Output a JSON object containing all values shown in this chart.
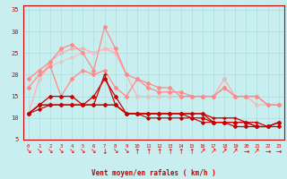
{
  "xlabel": "Vent moyen/en rafales ( km/h )",
  "xlim": [
    -0.5,
    23.5
  ],
  "ylim": [
    5,
    36
  ],
  "yticks": [
    5,
    10,
    15,
    20,
    25,
    30,
    35
  ],
  "xticks": [
    0,
    1,
    2,
    3,
    4,
    5,
    6,
    7,
    8,
    9,
    10,
    11,
    12,
    13,
    14,
    15,
    16,
    17,
    18,
    19,
    20,
    21,
    22,
    23
  ],
  "bg_color": "#c9eef0",
  "grid_color": "#aadddd",
  "series": [
    {
      "x": [
        0,
        1,
        2,
        3,
        4,
        5,
        6,
        7,
        8,
        9,
        10,
        11,
        12,
        13,
        14,
        15,
        16,
        17,
        18,
        19,
        20,
        21,
        22,
        23
      ],
      "y": [
        11,
        13,
        13,
        13,
        13,
        13,
        13,
        20,
        13,
        11,
        11,
        11,
        11,
        11,
        11,
        11,
        11,
        10,
        10,
        10,
        9,
        9,
        8,
        9
      ],
      "color": "#cc0000",
      "lw": 0.9,
      "marker": "+",
      "ms": 3.5,
      "zorder": 5
    },
    {
      "x": [
        0,
        1,
        2,
        3,
        4,
        5,
        6,
        7,
        8,
        9,
        10,
        11,
        12,
        13,
        14,
        15,
        16,
        17,
        18,
        19,
        20,
        21,
        22,
        23
      ],
      "y": [
        11,
        13,
        13,
        13,
        13,
        13,
        15,
        19,
        15,
        11,
        11,
        11,
        11,
        11,
        11,
        10,
        10,
        9,
        9,
        9,
        9,
        8,
        8,
        9
      ],
      "color": "#cc0000",
      "lw": 0.9,
      "marker": "D",
      "ms": 2.0,
      "zorder": 4
    },
    {
      "x": [
        0,
        1,
        2,
        3,
        4,
        5,
        6,
        7,
        8,
        9,
        10,
        11,
        12,
        13,
        14,
        15,
        16,
        17,
        18,
        19,
        20,
        21,
        22,
        23
      ],
      "y": [
        11,
        13,
        15,
        15,
        15,
        13,
        13,
        13,
        13,
        11,
        11,
        11,
        11,
        11,
        11,
        11,
        11,
        9,
        9,
        8,
        8,
        8,
        8,
        8
      ],
      "color": "#cc0000",
      "lw": 0.9,
      "marker": "D",
      "ms": 2.0,
      "zorder": 3
    },
    {
      "x": [
        0,
        1,
        2,
        3,
        4,
        5,
        6,
        7,
        8,
        9,
        10,
        11,
        12,
        13,
        14,
        15,
        16,
        17,
        18,
        19,
        20,
        21,
        22,
        23
      ],
      "y": [
        11,
        12,
        13,
        13,
        13,
        13,
        13,
        13,
        13,
        11,
        11,
        10,
        10,
        10,
        10,
        10,
        9,
        9,
        9,
        9,
        9,
        8,
        8,
        9
      ],
      "color": "#bb0000",
      "lw": 0.8,
      "marker": "D",
      "ms": 1.8,
      "zorder": 2
    },
    {
      "x": [
        0,
        1,
        2,
        3,
        4,
        5,
        6,
        7,
        8,
        9,
        10,
        11,
        12,
        13,
        14,
        15,
        16,
        17,
        18,
        19,
        20,
        21,
        22,
        23
      ],
      "y": [
        17,
        20,
        22,
        15,
        19,
        21,
        20,
        21,
        17,
        15,
        19,
        17,
        16,
        16,
        16,
        15,
        15,
        15,
        17,
        15,
        15,
        15,
        13,
        13
      ],
      "color": "#ff8888",
      "lw": 0.9,
      "marker": "D",
      "ms": 2.0,
      "zorder": 2
    },
    {
      "x": [
        0,
        1,
        2,
        3,
        4,
        5,
        6,
        7,
        8,
        9,
        10,
        11,
        12,
        13,
        14,
        15,
        16,
        17,
        18,
        19,
        20,
        21,
        22,
        23
      ],
      "y": [
        19,
        21,
        23,
        26,
        27,
        25,
        21,
        31,
        26,
        20,
        19,
        18,
        17,
        17,
        15,
        15,
        15,
        15,
        17,
        15,
        15,
        15,
        13,
        13
      ],
      "color": "#ff8888",
      "lw": 0.9,
      "marker": "D",
      "ms": 2.0,
      "zorder": 2
    },
    {
      "x": [
        0,
        1,
        2,
        3,
        4,
        5,
        6,
        7,
        8,
        9,
        10,
        11,
        12,
        13,
        14,
        15,
        16,
        17,
        18,
        19,
        20,
        21,
        22,
        23
      ],
      "y": [
        11,
        19,
        23,
        25,
        26,
        26,
        25,
        26,
        25,
        20,
        15,
        15,
        15,
        15,
        15,
        15,
        15,
        15,
        19,
        15,
        15,
        13,
        13,
        13
      ],
      "color": "#ffaaaa",
      "lw": 0.9,
      "marker": "D",
      "ms": 2.0,
      "zorder": 1
    },
    {
      "x": [
        0,
        1,
        2,
        3,
        4,
        5,
        6,
        7,
        8,
        9,
        10,
        11,
        12,
        13,
        14,
        15,
        16,
        17,
        18,
        19,
        20,
        21,
        22,
        23
      ],
      "y": [
        11,
        19,
        22,
        23,
        24,
        25,
        25,
        26,
        26,
        20,
        15,
        15,
        15,
        15,
        15,
        15,
        15,
        15,
        17,
        15,
        15,
        13,
        13,
        13
      ],
      "color": "#ffbbbb",
      "lw": 0.8,
      "marker": "D",
      "ms": 1.8,
      "zorder": 1
    }
  ],
  "wind_dirs": [
    "↘",
    "↘",
    "↘",
    "↘",
    "↘",
    "↘",
    "↘",
    "↓",
    "↘",
    "↘",
    "↑",
    "↑",
    "↑",
    "↑",
    "↑",
    "↑",
    "↗",
    "↗",
    "↗",
    "↗",
    "→",
    "↗",
    "→",
    "→"
  ]
}
